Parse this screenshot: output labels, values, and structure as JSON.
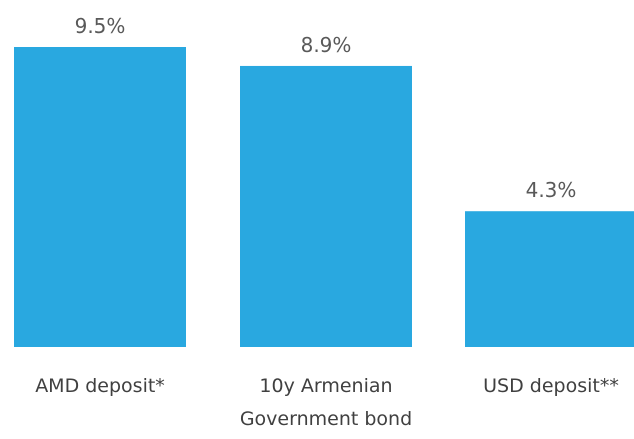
{
  "chart_data": {
    "type": "bar",
    "title": "",
    "xlabel": "",
    "ylabel": "",
    "categories": [
      [
        "AMD deposit*"
      ],
      [
        "10y Armenian",
        "Government bond"
      ],
      [
        "USD deposit**"
      ]
    ],
    "values": [
      9.5,
      8.9,
      4.3
    ],
    "value_labels": [
      "9.5%",
      "8.9%",
      "4.3%"
    ],
    "unit": "%",
    "ylim": [
      0,
      9.5
    ],
    "grid": false,
    "legend": "none",
    "bar_color": "#29A8E0"
  }
}
